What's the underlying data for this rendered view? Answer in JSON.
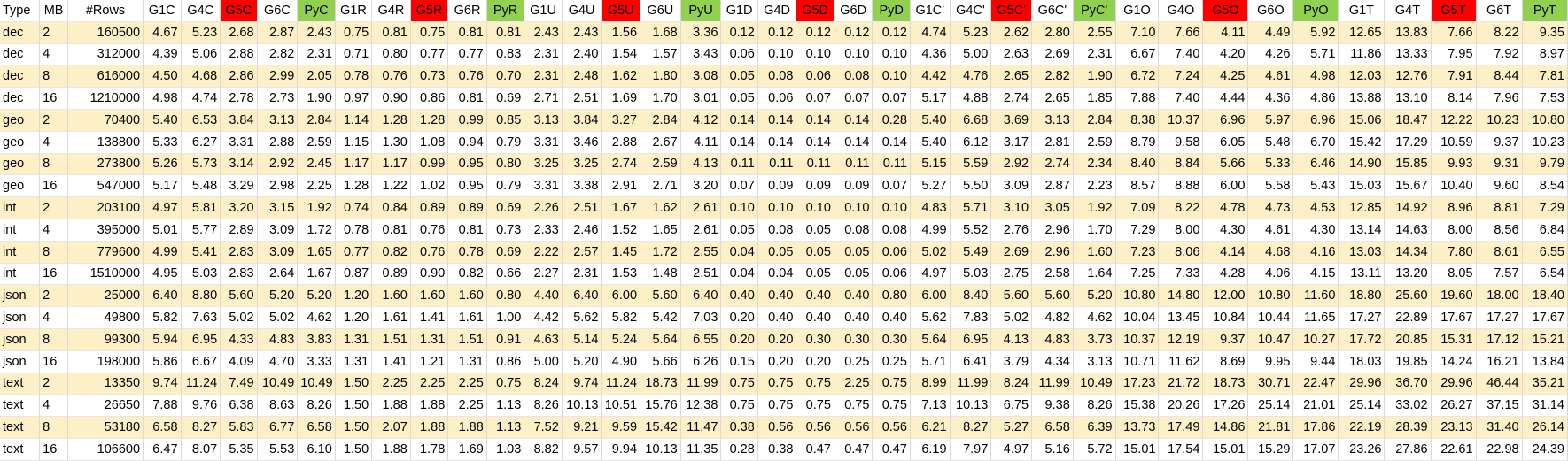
{
  "colors": {
    "stripe_fill": "#fdf0c6",
    "red_header": "#ff0000",
    "green_header": "#92d050"
  },
  "columns": [
    "Type",
    "MB",
    "#Rows",
    "G1C",
    "G4C",
    "G5C",
    "G6C",
    "PyC",
    "G1R",
    "G4R",
    "G5R",
    "G6R",
    "PyR",
    "G1U",
    "G4U",
    "G5U",
    "G6U",
    "PyU",
    "G1D",
    "G4D",
    "G5D",
    "G6D",
    "PyD",
    "G1C'",
    "G4C'",
    "G5C'",
    "G6C'",
    "PyC'",
    "G1O",
    "G4O",
    "G5O",
    "G6O",
    "PyO",
    "G1T",
    "G4T",
    "G5T",
    "G6T",
    "PyT"
  ],
  "header_fill": [
    "",
    "",
    "",
    "",
    "",
    "red",
    "",
    "green",
    "",
    "",
    "red",
    "",
    "green",
    "",
    "",
    "red",
    "",
    "green",
    "",
    "",
    "red",
    "",
    "green",
    "",
    "",
    "red",
    "",
    "green",
    "",
    "",
    "red",
    "",
    "green",
    "",
    "",
    "red",
    "",
    "green"
  ],
  "striped_rows": [
    0,
    2,
    4,
    6,
    8,
    10,
    12,
    14,
    16,
    18
  ],
  "rows": [
    [
      "dec",
      "2",
      "160500",
      "4.67",
      "5.23",
      "2.68",
      "2.87",
      "2.43",
      "0.75",
      "0.81",
      "0.75",
      "0.81",
      "0.81",
      "2.43",
      "2.43",
      "1.56",
      "1.68",
      "3.36",
      "0.12",
      "0.12",
      "0.12",
      "0.12",
      "0.12",
      "4.74",
      "5.23",
      "2.62",
      "2.80",
      "2.55",
      "7.10",
      "7.66",
      "4.11",
      "4.49",
      "5.92",
      "12.65",
      "13.83",
      "7.66",
      "8.22",
      "9.35"
    ],
    [
      "dec",
      "4",
      "312000",
      "4.39",
      "5.06",
      "2.88",
      "2.82",
      "2.31",
      "0.71",
      "0.80",
      "0.77",
      "0.77",
      "0.83",
      "2.31",
      "2.40",
      "1.54",
      "1.57",
      "3.43",
      "0.06",
      "0.10",
      "0.10",
      "0.10",
      "0.10",
      "4.36",
      "5.00",
      "2.63",
      "2.69",
      "2.31",
      "6.67",
      "7.40",
      "4.20",
      "4.26",
      "5.71",
      "11.86",
      "13.33",
      "7.95",
      "7.92",
      "8.97"
    ],
    [
      "dec",
      "8",
      "616000",
      "4.50",
      "4.68",
      "2.86",
      "2.99",
      "2.05",
      "0.78",
      "0.76",
      "0.73",
      "0.76",
      "0.70",
      "2.31",
      "2.48",
      "1.62",
      "1.80",
      "3.08",
      "0.05",
      "0.08",
      "0.06",
      "0.08",
      "0.10",
      "4.42",
      "4.76",
      "2.65",
      "2.82",
      "1.90",
      "6.72",
      "7.24",
      "4.25",
      "4.61",
      "4.98",
      "12.03",
      "12.76",
      "7.91",
      "8.44",
      "7.81"
    ],
    [
      "dec",
      "16",
      "1210000",
      "4.98",
      "4.74",
      "2.78",
      "2.73",
      "1.90",
      "0.97",
      "0.90",
      "0.86",
      "0.81",
      "0.69",
      "2.71",
      "2.51",
      "1.69",
      "1.70",
      "3.01",
      "0.05",
      "0.06",
      "0.07",
      "0.07",
      "0.07",
      "5.17",
      "4.88",
      "2.74",
      "2.65",
      "1.85",
      "7.88",
      "7.40",
      "4.44",
      "4.36",
      "4.86",
      "13.88",
      "13.10",
      "8.14",
      "7.96",
      "7.53"
    ],
    [
      "geo",
      "2",
      "70400",
      "5.40",
      "6.53",
      "3.84",
      "3.13",
      "2.84",
      "1.14",
      "1.28",
      "1.28",
      "0.99",
      "0.85",
      "3.13",
      "3.84",
      "3.27",
      "2.84",
      "4.12",
      "0.14",
      "0.14",
      "0.14",
      "0.14",
      "0.28",
      "5.40",
      "6.68",
      "3.69",
      "3.13",
      "2.84",
      "8.38",
      "10.37",
      "6.96",
      "5.97",
      "6.96",
      "15.06",
      "18.47",
      "12.22",
      "10.23",
      "10.80"
    ],
    [
      "geo",
      "4",
      "138800",
      "5.33",
      "6.27",
      "3.31",
      "2.88",
      "2.59",
      "1.15",
      "1.30",
      "1.08",
      "0.94",
      "0.79",
      "3.31",
      "3.46",
      "2.88",
      "2.67",
      "4.11",
      "0.14",
      "0.14",
      "0.14",
      "0.14",
      "0.14",
      "5.40",
      "6.12",
      "3.17",
      "2.81",
      "2.59",
      "8.79",
      "9.58",
      "6.05",
      "5.48",
      "6.70",
      "15.42",
      "17.29",
      "10.59",
      "9.37",
      "10.23"
    ],
    [
      "geo",
      "8",
      "273800",
      "5.26",
      "5.73",
      "3.14",
      "2.92",
      "2.45",
      "1.17",
      "1.17",
      "0.99",
      "0.95",
      "0.80",
      "3.25",
      "3.25",
      "2.74",
      "2.59",
      "4.13",
      "0.11",
      "0.11",
      "0.11",
      "0.11",
      "0.11",
      "5.15",
      "5.59",
      "2.92",
      "2.74",
      "2.34",
      "8.40",
      "8.84",
      "5.66",
      "5.33",
      "6.46",
      "14.90",
      "15.85",
      "9.93",
      "9.31",
      "9.79"
    ],
    [
      "geo",
      "16",
      "547000",
      "5.17",
      "5.48",
      "3.29",
      "2.98",
      "2.25",
      "1.28",
      "1.22",
      "1.02",
      "0.95",
      "0.79",
      "3.31",
      "3.38",
      "2.91",
      "2.71",
      "3.20",
      "0.07",
      "0.09",
      "0.09",
      "0.09",
      "0.07",
      "5.27",
      "5.50",
      "3.09",
      "2.87",
      "2.23",
      "8.57",
      "8.88",
      "6.00",
      "5.58",
      "5.43",
      "15.03",
      "15.67",
      "10.40",
      "9.60",
      "8.54"
    ],
    [
      "int",
      "2",
      "203100",
      "4.97",
      "5.81",
      "3.20",
      "3.15",
      "1.92",
      "0.74",
      "0.84",
      "0.89",
      "0.89",
      "0.69",
      "2.26",
      "2.51",
      "1.67",
      "1.62",
      "2.61",
      "0.10",
      "0.10",
      "0.10",
      "0.10",
      "0.10",
      "4.83",
      "5.71",
      "3.10",
      "3.05",
      "1.92",
      "7.09",
      "8.22",
      "4.78",
      "4.73",
      "4.53",
      "12.85",
      "14.92",
      "8.96",
      "8.81",
      "7.29"
    ],
    [
      "int",
      "4",
      "395000",
      "5.01",
      "5.77",
      "2.89",
      "3.09",
      "1.72",
      "0.78",
      "0.81",
      "0.76",
      "0.81",
      "0.73",
      "2.33",
      "2.46",
      "1.52",
      "1.65",
      "2.61",
      "0.05",
      "0.08",
      "0.05",
      "0.08",
      "0.08",
      "4.99",
      "5.52",
      "2.76",
      "2.96",
      "1.70",
      "7.29",
      "8.00",
      "4.30",
      "4.61",
      "4.30",
      "13.14",
      "14.63",
      "8.00",
      "8.56",
      "6.84"
    ],
    [
      "int",
      "8",
      "779600",
      "4.99",
      "5.41",
      "2.83",
      "3.09",
      "1.65",
      "0.77",
      "0.82",
      "0.76",
      "0.78",
      "0.69",
      "2.22",
      "2.57",
      "1.45",
      "1.72",
      "2.55",
      "0.04",
      "0.05",
      "0.05",
      "0.05",
      "0.06",
      "5.02",
      "5.49",
      "2.69",
      "2.96",
      "1.60",
      "7.23",
      "8.06",
      "4.14",
      "4.68",
      "4.16",
      "13.03",
      "14.34",
      "7.80",
      "8.61",
      "6.55"
    ],
    [
      "int",
      "16",
      "1510000",
      "4.95",
      "5.03",
      "2.83",
      "2.64",
      "1.67",
      "0.87",
      "0.89",
      "0.90",
      "0.82",
      "0.66",
      "2.27",
      "2.31",
      "1.53",
      "1.48",
      "2.51",
      "0.04",
      "0.04",
      "0.05",
      "0.05",
      "0.06",
      "4.97",
      "5.03",
      "2.75",
      "2.58",
      "1.64",
      "7.25",
      "7.33",
      "4.28",
      "4.06",
      "4.15",
      "13.11",
      "13.20",
      "8.05",
      "7.57",
      "6.54"
    ],
    [
      "json",
      "2",
      "25000",
      "6.40",
      "8.80",
      "5.60",
      "5.20",
      "5.20",
      "1.20",
      "1.60",
      "1.60",
      "1.60",
      "0.80",
      "4.40",
      "6.40",
      "6.00",
      "5.60",
      "6.40",
      "0.40",
      "0.40",
      "0.40",
      "0.40",
      "0.80",
      "6.00",
      "8.40",
      "5.60",
      "5.60",
      "5.20",
      "10.80",
      "14.80",
      "12.00",
      "10.80",
      "11.60",
      "18.80",
      "25.60",
      "19.60",
      "18.00",
      "18.40"
    ],
    [
      "json",
      "4",
      "49800",
      "5.82",
      "7.63",
      "5.02",
      "5.02",
      "4.62",
      "1.20",
      "1.61",
      "1.41",
      "1.61",
      "1.00",
      "4.42",
      "5.62",
      "5.82",
      "5.42",
      "7.03",
      "0.20",
      "0.40",
      "0.40",
      "0.40",
      "0.40",
      "5.62",
      "7.83",
      "5.02",
      "4.82",
      "4.62",
      "10.04",
      "13.45",
      "10.84",
      "10.44",
      "11.65",
      "17.27",
      "22.89",
      "17.67",
      "17.27",
      "17.67"
    ],
    [
      "json",
      "8",
      "99300",
      "5.94",
      "6.95",
      "4.33",
      "4.83",
      "3.83",
      "1.31",
      "1.51",
      "1.31",
      "1.51",
      "0.91",
      "4.63",
      "5.14",
      "5.24",
      "5.64",
      "6.55",
      "0.20",
      "0.20",
      "0.30",
      "0.30",
      "0.30",
      "5.64",
      "6.95",
      "4.13",
      "4.83",
      "3.73",
      "10.37",
      "12.19",
      "9.37",
      "10.47",
      "10.27",
      "17.72",
      "20.85",
      "15.31",
      "17.12",
      "15.21"
    ],
    [
      "json",
      "16",
      "198000",
      "5.86",
      "6.67",
      "4.09",
      "4.70",
      "3.33",
      "1.31",
      "1.41",
      "1.21",
      "1.31",
      "0.86",
      "5.00",
      "5.20",
      "4.90",
      "5.66",
      "6.26",
      "0.15",
      "0.20",
      "0.20",
      "0.25",
      "0.25",
      "5.71",
      "6.41",
      "3.79",
      "4.34",
      "3.13",
      "10.71",
      "11.62",
      "8.69",
      "9.95",
      "9.44",
      "18.03",
      "19.85",
      "14.24",
      "16.21",
      "13.84"
    ],
    [
      "text",
      "2",
      "13350",
      "9.74",
      "11.24",
      "7.49",
      "10.49",
      "10.49",
      "1.50",
      "2.25",
      "2.25",
      "2.25",
      "0.75",
      "8.24",
      "9.74",
      "11.24",
      "18.73",
      "11.99",
      "0.75",
      "0.75",
      "0.75",
      "2.25",
      "0.75",
      "8.99",
      "11.99",
      "8.24",
      "11.99",
      "10.49",
      "17.23",
      "21.72",
      "18.73",
      "30.71",
      "22.47",
      "29.96",
      "36.70",
      "29.96",
      "46.44",
      "35.21"
    ],
    [
      "text",
      "4",
      "26650",
      "7.88",
      "9.76",
      "6.38",
      "8.63",
      "8.26",
      "1.50",
      "1.88",
      "1.88",
      "2.25",
      "1.13",
      "8.26",
      "10.13",
      "10.51",
      "15.76",
      "12.38",
      "0.75",
      "0.75",
      "0.75",
      "0.75",
      "0.75",
      "7.13",
      "10.13",
      "6.75",
      "9.38",
      "8.26",
      "15.38",
      "20.26",
      "17.26",
      "25.14",
      "21.01",
      "25.14",
      "33.02",
      "26.27",
      "37.15",
      "31.14"
    ],
    [
      "text",
      "8",
      "53180",
      "6.58",
      "8.27",
      "5.83",
      "6.77",
      "6.58",
      "1.50",
      "2.07",
      "1.88",
      "1.88",
      "1.13",
      "7.52",
      "9.21",
      "9.59",
      "15.42",
      "11.47",
      "0.38",
      "0.56",
      "0.56",
      "0.56",
      "0.56",
      "6.21",
      "8.27",
      "5.27",
      "6.58",
      "6.39",
      "13.73",
      "17.49",
      "14.86",
      "21.81",
      "17.86",
      "22.19",
      "28.39",
      "23.13",
      "31.40",
      "26.14"
    ],
    [
      "text",
      "16",
      "106600",
      "6.47",
      "8.07",
      "5.35",
      "5.53",
      "6.10",
      "1.50",
      "1.88",
      "1.78",
      "1.69",
      "1.03",
      "8.82",
      "9.57",
      "9.94",
      "10.13",
      "11.35",
      "0.28",
      "0.38",
      "0.47",
      "0.47",
      "0.47",
      "6.19",
      "7.97",
      "4.97",
      "5.16",
      "5.72",
      "15.01",
      "17.54",
      "15.01",
      "15.29",
      "17.07",
      "23.26",
      "27.86",
      "22.61",
      "22.98",
      "24.39"
    ]
  ]
}
